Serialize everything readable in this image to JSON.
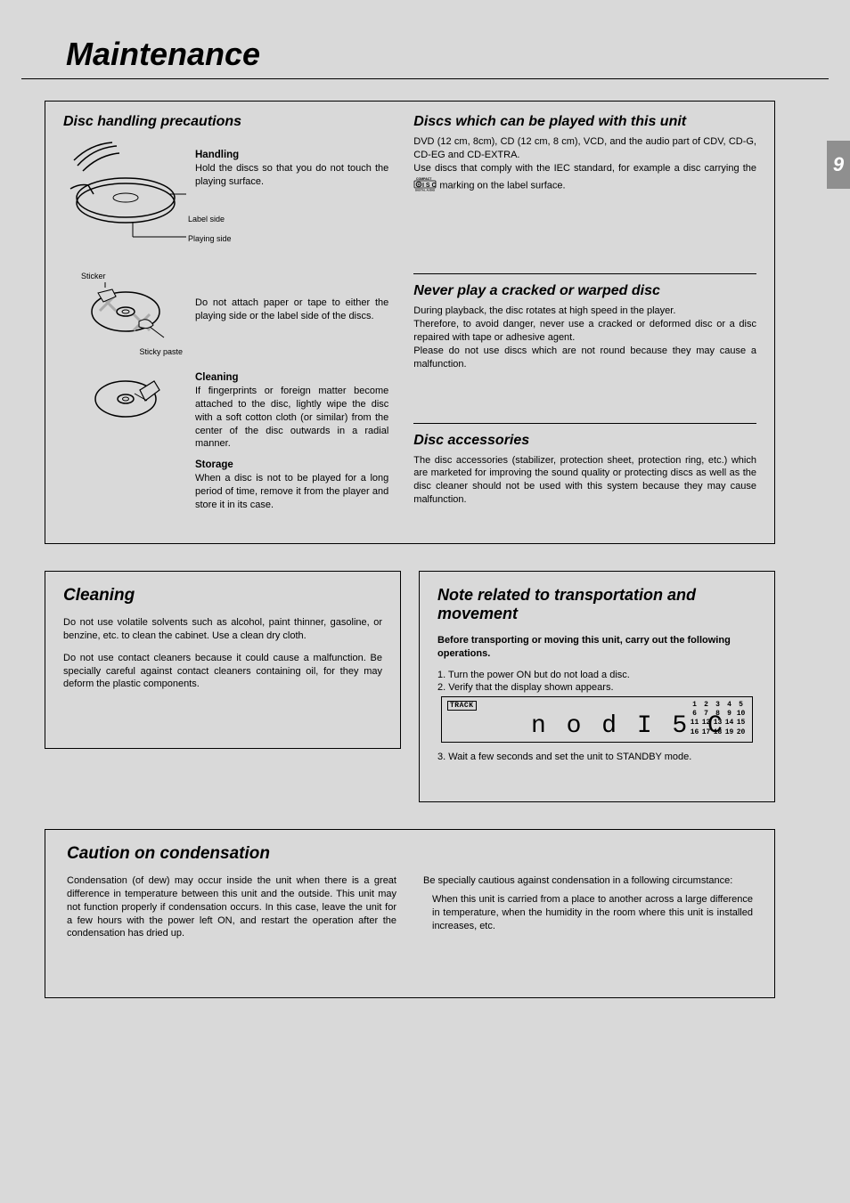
{
  "page": {
    "title": "Maintenance",
    "number": "9"
  },
  "main": {
    "disc_handling": {
      "title": "Disc handling precautions",
      "handling": {
        "heading": "Handling",
        "text": "Hold the discs so that you do not touch the playing surface.",
        "label_side": "Label side",
        "playing_side": "Playing side"
      },
      "no_attach": {
        "text": "Do not attach paper or tape to either the playing side or the label side of the discs.",
        "sticker": "Sticker",
        "sticky_paste": "Sticky paste"
      },
      "cleaning": {
        "heading": "Cleaning",
        "text": "If fingerprints or foreign matter become attached to the disc, lightly wipe the disc with a soft cotton cloth (or similar) from the center of the disc outwards in a radial manner."
      },
      "storage": {
        "heading": "Storage",
        "text": "When a disc is not to be played for a long period of time, remove it from the player and store it in its case."
      }
    },
    "playable": {
      "title": "Discs which can be played with this unit",
      "p1": "DVD (12 cm, 8cm), CD (12 cm, 8 cm), VCD, and the audio part of CDV, CD-G, CD-EG and CD-EXTRA.",
      "p2a": "Use discs that comply with the IEC standard, for example a disc carrying the ",
      "p2b": " marking on the label surface."
    },
    "cracked": {
      "title": "Never play a cracked or warped disc",
      "p1": "During playback, the disc rotates at high speed in the player.",
      "p2": "Therefore, to avoid danger, never use a cracked or deformed disc or a disc repaired with tape or adhesive agent.",
      "p3": "Please do not use discs which are not round because they may cause a malfunction."
    },
    "accessories": {
      "title": "Disc accessories",
      "text": "The disc accessories (stabilizer, protection sheet, protection ring, etc.) which are marketed for improving the sound quality or protecting discs as well as the disc cleaner should not be used with this system because they may cause malfunction."
    }
  },
  "cleaning_box": {
    "title": "Cleaning",
    "p1": "Do not use volatile solvents such as alcohol, paint thinner, gasoline, or benzine, etc. to clean the cabinet.  Use a clean dry cloth.",
    "p2": "Do not use contact cleaners because it could cause a malfunction. Be specially careful against contact cleaners containing oil, for they may deform the plastic components."
  },
  "transport_box": {
    "title": "Note related to transportation and movement",
    "lead": "Before transporting or moving this unit, carry out the following operations.",
    "step1": "1. Turn the power ON but do not load a disc.",
    "step2": "2. Verify that the display shown appears.",
    "step3": "3. Wait a few seconds and set the unit to STANDBY mode.",
    "display": {
      "track": "TRACK",
      "text": "n o  d I 5 C",
      "row1": [
        "1",
        "2",
        "3",
        "4",
        "5"
      ],
      "row2": [
        "6",
        "7",
        "8",
        "9",
        "10"
      ],
      "row3": [
        "11",
        "12",
        "13",
        "14",
        "15"
      ],
      "row4": [
        "16",
        "17",
        "18",
        "19",
        "20"
      ]
    }
  },
  "condensation": {
    "title": "Caution on condensation",
    "p1": "Condensation (of dew) may occur inside the unit when there is a great difference in temperature between this unit and the outside. This unit may not function properly if condensation occurs. In this case, leave the unit for a few hours with the power left ON, and restart the operation after the condensation has dried up.",
    "p2": "Be specially cautious against condensation in a following circumstance:",
    "p3": "When this unit is carried from a place to another across a large difference in temperature, when the humidity in the room where this unit is installed increases, etc."
  },
  "colors": {
    "bg": "#d9d9d9",
    "tab": "#8f8f8f",
    "text": "#000000",
    "white": "#ffffff"
  }
}
